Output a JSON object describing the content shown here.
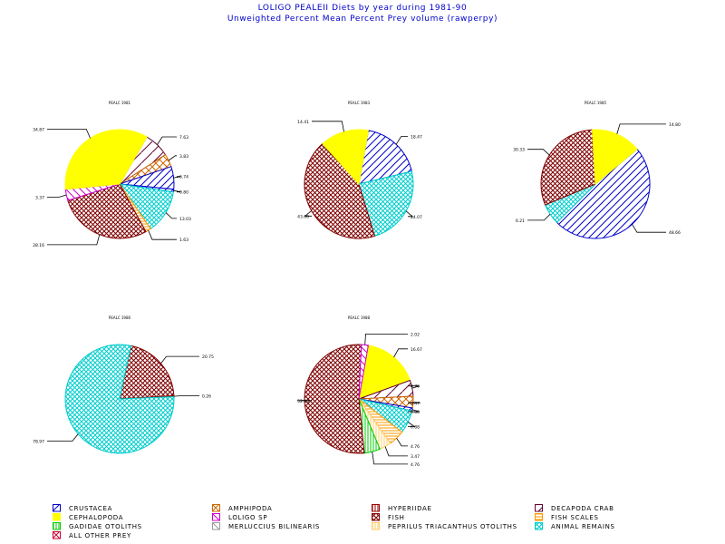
{
  "title": "LOLIGO PEALEII Diets by year during 1981-90",
  "subtitle": "Unweighted Percent Mean Percent Prey  volume (rawperpy)",
  "categories": [
    {
      "key": "crustacea",
      "label": "CRUSTACEA",
      "color": "#0000cc",
      "pattern": "diag-up"
    },
    {
      "key": "amphipoda",
      "label": "AMPHIPODA",
      "color": "#cc6600",
      "pattern": "cross-diag"
    },
    {
      "key": "hyperiidae",
      "label": "HYPERIIDAE",
      "color": "#990000",
      "pattern": "vertical"
    },
    {
      "key": "decapoda_crab",
      "label": "DECAPODA CRAB",
      "color": "#660033",
      "pattern": "diag-up-sparse"
    },
    {
      "key": "cephalopoda",
      "label": "CEPHALOPODA",
      "color": "#ffff00",
      "pattern": "solid"
    },
    {
      "key": "loligo_sp",
      "label": "LOLIGO SP",
      "color": "#cc00cc",
      "pattern": "diag-down"
    },
    {
      "key": "fish",
      "label": "FISH",
      "color": "#800000",
      "pattern": "cross"
    },
    {
      "key": "fish_scales",
      "label": "FISH SCALES",
      "color": "#ff9900",
      "pattern": "horizontal"
    },
    {
      "key": "gadidae_otoliths",
      "label": "GADIDAE OTOLITHS",
      "color": "#00cc00",
      "pattern": "vertical"
    },
    {
      "key": "merluccius_bilinearis",
      "label": "MERLUCCIUS BILINEARIS",
      "color": "#999999",
      "pattern": "diag-down"
    },
    {
      "key": "peprilus_otoliths",
      "label": "PEPRILUS TRIACANTHUS OTOLITHS",
      "color": "#ffcc66",
      "pattern": "vertical"
    },
    {
      "key": "animal_remains",
      "label": "ANIMAL REMAINS",
      "color": "#00cccc",
      "pattern": "cross"
    },
    {
      "key": "all_other_prey",
      "label": "ALL OTHER PREY",
      "color": "#cc0033",
      "pattern": "cross-diag"
    }
  ],
  "chart_data": [
    {
      "type": "pie",
      "title": "PEALC 1981",
      "slices": [
        {
          "category": "decapoda_crab",
          "value": 7.63,
          "label": "7.63"
        },
        {
          "category": "amphipoda",
          "value": 3.83,
          "label": "3.83"
        },
        {
          "category": "crustacea",
          "value": 6.74,
          "label": "6.74"
        },
        {
          "category": "crustacea",
          "value": 0.8,
          "label": "0.80"
        },
        {
          "category": "animal_remains",
          "value": 13.03,
          "label": "13.03"
        },
        {
          "category": "fish_scales",
          "value": 1.63,
          "label": "1.63"
        },
        {
          "category": "fish",
          "value": 28.16,
          "label": "28.16"
        },
        {
          "category": "loligo_sp",
          "value": 3.37,
          "label": "3.37"
        },
        {
          "category": "cephalopoda",
          "value": 34.87,
          "label": "34.87"
        }
      ]
    },
    {
      "type": "pie",
      "title": "PEALC 1983",
      "slices": [
        {
          "category": "crustacea",
          "value": 18.47,
          "label": "18.47"
        },
        {
          "category": "animal_remains",
          "value": 24.07,
          "label": "24.07"
        },
        {
          "category": "fish",
          "value": 43.06,
          "label": "43.06"
        },
        {
          "category": "cephalopoda",
          "value": 14.41,
          "label": "14.41"
        }
      ]
    },
    {
      "type": "pie",
      "title": "PEALC 1985",
      "slices": [
        {
          "category": "crustacea",
          "value": 48.66,
          "label": "48.66"
        },
        {
          "category": "animal_remains",
          "value": 6.21,
          "label": "6.21"
        },
        {
          "category": "fish",
          "value": 30.33,
          "label": "30.33"
        },
        {
          "category": "cephalopoda",
          "value": 14.8,
          "label": "14.80"
        }
      ]
    },
    {
      "type": "pie",
      "title": "PEALC 1986",
      "slices": [
        {
          "category": "fish",
          "value": 20.75,
          "label": "20.75"
        },
        {
          "category": "hyperiidae",
          "value": 0.26,
          "label": "0.26"
        },
        {
          "category": "animal_remains",
          "value": 78.97,
          "label": "78.97"
        }
      ]
    },
    {
      "type": "pie",
      "title": "PEALC 1988",
      "slices": [
        {
          "category": "cephalopoda",
          "value": 16.67,
          "label": "16.67"
        },
        {
          "category": "decapoda_crab",
          "value": 4.76,
          "label": "4.76"
        },
        {
          "category": "amphipoda",
          "value": 3.47,
          "label": "3.47"
        },
        {
          "category": "crustacea",
          "value": 0.88,
          "label": "0.88"
        },
        {
          "category": "animal_remains",
          "value": 6.88,
          "label": "6.88"
        },
        {
          "category": "fish_scales",
          "value": 4.76,
          "label": "4.76"
        },
        {
          "category": "peprilus_otoliths",
          "value": 3.47,
          "label": "3.47"
        },
        {
          "category": "gadidae_otoliths",
          "value": 4.76,
          "label": "4.76"
        },
        {
          "category": "fish",
          "value": 52.33,
          "label": "52.33"
        },
        {
          "category": "loligo_sp",
          "value": 2.02,
          "label": "2.02"
        }
      ]
    }
  ]
}
